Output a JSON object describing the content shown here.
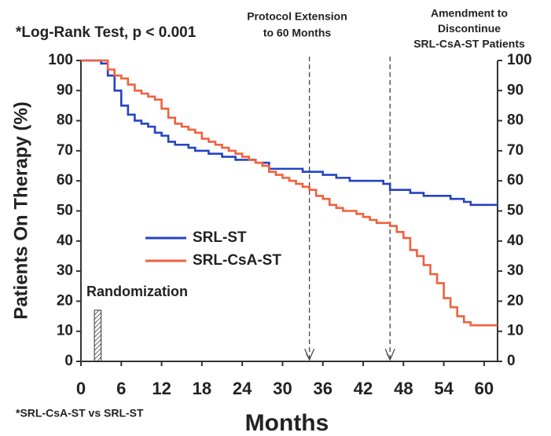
{
  "chart_data": {
    "type": "step",
    "title": "*Log-Rank Test, p < 0.001",
    "footnote": "*SRL-CsA-ST vs SRL-ST",
    "x_label": "Months",
    "y_label": "Patients On Therapy (%)",
    "x": [
      0,
      1,
      2,
      3,
      4,
      5,
      6,
      7,
      8,
      9,
      10,
      11,
      12,
      13,
      14,
      15,
      16,
      17,
      18,
      19,
      20,
      21,
      22,
      23,
      24,
      25,
      26,
      27,
      28,
      29,
      30,
      31,
      32,
      33,
      34,
      35,
      36,
      37,
      38,
      39,
      40,
      41,
      42,
      43,
      44,
      45,
      46,
      47,
      48,
      49,
      50,
      51,
      52,
      53,
      54,
      55,
      56,
      57,
      58,
      59,
      60,
      61,
      62
    ],
    "series": [
      {
        "name": "SRL-ST",
        "color": "#2443c4",
        "values": [
          100,
          100,
          100,
          99,
          95,
          90,
          85,
          82,
          80,
          79,
          78,
          76,
          75,
          73,
          72,
          72,
          71,
          70,
          70,
          69,
          69,
          68,
          68,
          67,
          67,
          67,
          66,
          66,
          64,
          64,
          64,
          64,
          64,
          63,
          63,
          63,
          62,
          62,
          61,
          61,
          60,
          60,
          60,
          60,
          60,
          59,
          57,
          57,
          57,
          56,
          56,
          55,
          55,
          55,
          55,
          54,
          54,
          53,
          52,
          52,
          52,
          52,
          52
        ]
      },
      {
        "name": "SRL-CsA-ST",
        "color": "#f2603e",
        "values": [
          100,
          100,
          100,
          100,
          97,
          95,
          94,
          92,
          90,
          89,
          88,
          87,
          84,
          81,
          79,
          78,
          77,
          76,
          74,
          73,
          72,
          71,
          70,
          69,
          68,
          67,
          66,
          65,
          63,
          62,
          61,
          60,
          59,
          58,
          57,
          55,
          54,
          52,
          51,
          50,
          50,
          49,
          48,
          47,
          46,
          46,
          45,
          43,
          41,
          37,
          35,
          32,
          29,
          26,
          21,
          18,
          15,
          13,
          12,
          12,
          12,
          12,
          12
        ]
      }
    ],
    "xlim": [
      0,
      62
    ],
    "xticks": [
      0,
      6,
      12,
      18,
      24,
      30,
      36,
      42,
      48,
      54,
      60
    ],
    "ylim": [
      0,
      100
    ],
    "yticks": [
      0,
      10,
      20,
      30,
      40,
      50,
      60,
      70,
      80,
      90,
      100
    ],
    "y2lim": [
      0,
      100
    ],
    "y2ticks": [
      0,
      10,
      20,
      30,
      40,
      50,
      60,
      70,
      80,
      90,
      100
    ],
    "legend": "center left",
    "annotations": [
      {
        "text": [
          "Protocol Extension",
          "to 60 Months"
        ],
        "x": 34
      },
      {
        "text": [
          "Amendment to",
          "Discontinue",
          "SRL-CsA-ST Patients"
        ],
        "x": 46
      }
    ],
    "randomization": {
      "label": "Randomization",
      "x": [
        2,
        3
      ],
      "height": 17
    }
  }
}
